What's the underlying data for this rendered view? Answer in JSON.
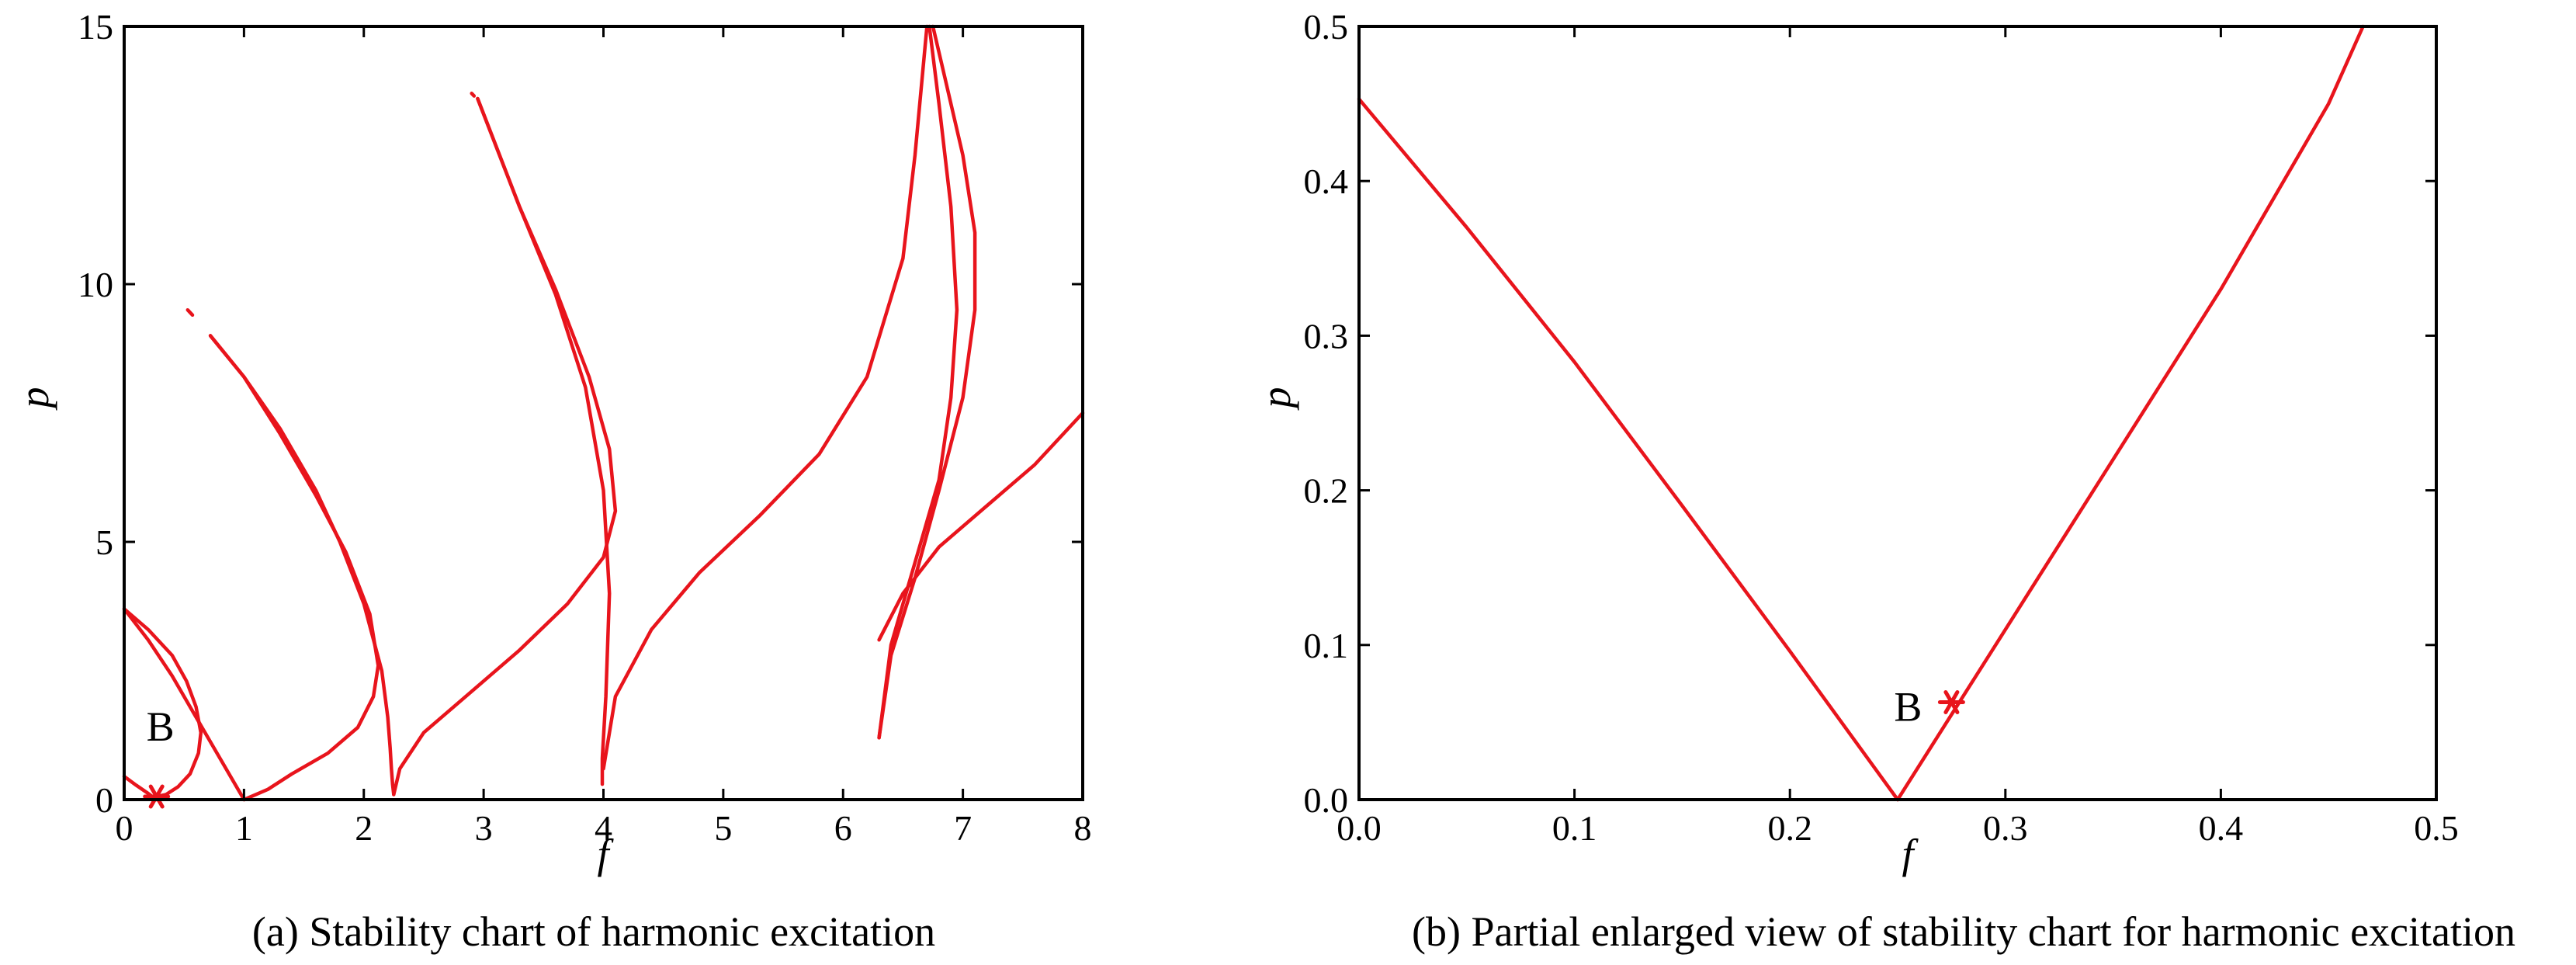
{
  "colors": {
    "curve": "#e8141c",
    "axis": "#000000"
  },
  "chart_data": [
    {
      "type": "line",
      "title": "(a) Stability chart of harmonic excitation",
      "xlabel": "f",
      "ylabel": "p",
      "xlim": [
        0,
        8
      ],
      "ylim": [
        0,
        15
      ],
      "xticks": [
        "0",
        "1",
        "2",
        "3",
        "4",
        "5",
        "6",
        "7",
        "8"
      ],
      "yticks": [
        "0",
        "5",
        "10",
        "15"
      ],
      "grid": false,
      "marker": {
        "label": "B",
        "x": 0.27,
        "y": 0.06,
        "symbol": "asterisk"
      },
      "series": [
        {
          "x": [
            0.0,
            0.2,
            0.4,
            0.6,
            0.8,
            1.0
          ],
          "y": [
            3.7,
            3.1,
            2.4,
            1.6,
            0.8,
            0.0
          ]
        },
        {
          "x": [
            0.0,
            0.2,
            0.4,
            0.52,
            0.6,
            0.64,
            0.62,
            0.55,
            0.45,
            0.35,
            0.27
          ],
          "y": [
            3.7,
            3.3,
            2.8,
            2.3,
            1.8,
            1.3,
            0.9,
            0.5,
            0.25,
            0.1,
            0.06
          ]
        },
        {
          "x": [
            0.0,
            0.1,
            0.2,
            0.27
          ],
          "y": [
            0.45,
            0.28,
            0.12,
            0.0
          ]
        },
        {
          "x": [
            0.53,
            0.57
          ],
          "y": [
            9.5,
            9.4
          ]
        },
        {
          "x": [
            0.72,
            1.0,
            1.3,
            1.6,
            1.8,
            2.0,
            2.15,
            2.2,
            2.22,
            2.23,
            2.24,
            2.25
          ],
          "y": [
            9.0,
            8.2,
            7.2,
            6.0,
            5.0,
            3.8,
            2.5,
            1.6,
            1.0,
            0.6,
            0.3,
            0.1
          ]
        },
        {
          "x": [
            0.72,
            1.0,
            1.3,
            1.6,
            1.85,
            2.05,
            2.12,
            2.08,
            1.95,
            1.7,
            1.4,
            1.2,
            1.05,
            1.0
          ],
          "y": [
            9.0,
            8.2,
            7.1,
            5.9,
            4.8,
            3.6,
            2.6,
            2.0,
            1.4,
            0.9,
            0.5,
            0.2,
            0.05,
            0.0
          ]
        },
        {
          "x": [
            2.9,
            2.92
          ],
          "y": [
            13.7,
            13.65
          ]
        },
        {
          "x": [
            2.95,
            3.3,
            3.6,
            3.85,
            4.0,
            4.05,
            4.02,
            3.99,
            3.99
          ],
          "y": [
            13.6,
            11.5,
            9.8,
            8.0,
            6.0,
            4.0,
            2.0,
            0.8,
            0.3
          ]
        },
        {
          "x": [
            2.95,
            3.3,
            3.6,
            3.88,
            4.05,
            4.1,
            4.0,
            3.7,
            3.3,
            2.9,
            2.5,
            2.3,
            2.25
          ],
          "y": [
            13.6,
            11.5,
            9.9,
            8.2,
            6.8,
            5.6,
            4.7,
            3.8,
            2.9,
            2.1,
            1.3,
            0.6,
            0.1
          ]
        },
        {
          "x": [
            4.0,
            4.1,
            4.4,
            4.8,
            5.3,
            5.8,
            6.2,
            6.5,
            6.6,
            6.7
          ],
          "y": [
            0.6,
            2.0,
            3.3,
            4.4,
            5.5,
            6.7,
            8.2,
            10.5,
            12.5,
            15.0
          ]
        },
        {
          "x": [
            6.3,
            6.4,
            6.6,
            6.8,
            7.0,
            7.1,
            7.1,
            7.0,
            6.85,
            6.75
          ],
          "y": [
            1.2,
            2.8,
            4.3,
            6.0,
            7.8,
            9.5,
            11.0,
            12.5,
            14.0,
            15.0
          ]
        },
        {
          "x": [
            6.3,
            6.5,
            6.8,
            7.2,
            7.6,
            8.0
          ],
          "y": [
            3.1,
            4.0,
            4.9,
            5.7,
            6.5,
            7.5
          ]
        },
        {
          "x": [
            6.72,
            6.8,
            6.9,
            6.95,
            6.9,
            6.8,
            6.6,
            6.4,
            6.3
          ],
          "y": [
            15.0,
            13.5,
            11.5,
            9.5,
            7.8,
            6.2,
            4.6,
            3.0,
            1.2
          ]
        }
      ]
    },
    {
      "type": "line",
      "title": "(b) Partial enlarged view of stability chart for harmonic excitation",
      "xlabel": "f",
      "ylabel": "p",
      "xlim": [
        0,
        0.5
      ],
      "ylim": [
        0,
        0.5
      ],
      "xticks": [
        "0.0",
        "0.1",
        "0.2",
        "0.3",
        "0.4",
        "0.5"
      ],
      "yticks": [
        "0.0",
        "0.1",
        "0.2",
        "0.3",
        "0.4",
        "0.5"
      ],
      "grid": false,
      "marker": {
        "label": "B",
        "x": 0.275,
        "y": 0.063,
        "symbol": "asterisk"
      },
      "series": [
        {
          "x": [
            0.0,
            0.05,
            0.1,
            0.15,
            0.2,
            0.25
          ],
          "y": [
            0.453,
            0.37,
            0.283,
            0.19,
            0.096,
            0.0
          ]
        },
        {
          "x": [
            0.25,
            0.3,
            0.35,
            0.4,
            0.45,
            0.466
          ],
          "y": [
            0.0,
            0.11,
            0.22,
            0.33,
            0.45,
            0.5
          ]
        }
      ]
    }
  ]
}
